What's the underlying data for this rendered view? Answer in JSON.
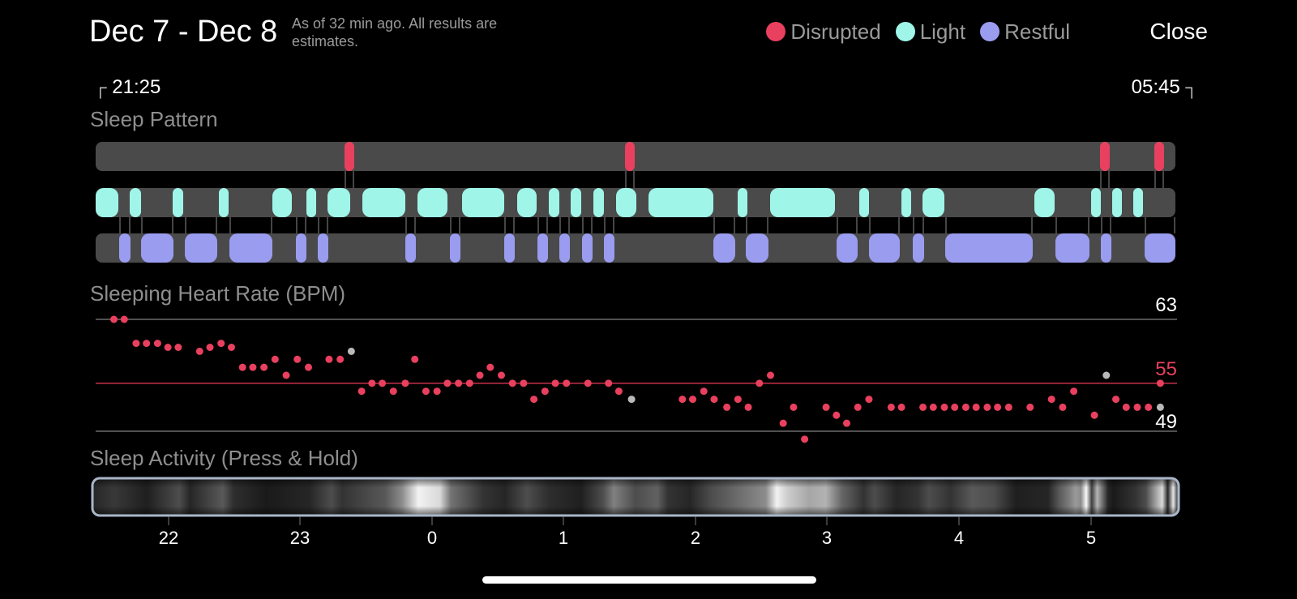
{
  "header": {
    "title": "Dec 7 - Dec 8",
    "subtitle": "As of 32 min ago. All results are estimates.",
    "close_label": "Close"
  },
  "legend": [
    {
      "label": "Disrupted",
      "color": "#e8405e"
    },
    {
      "label": "Light",
      "color": "#9ff5e8"
    },
    {
      "label": "Restful",
      "color": "#9a9cf0"
    }
  ],
  "range": {
    "start": "21:25",
    "end": "05:45"
  },
  "sections": {
    "sleep_pattern": "Sleep Pattern",
    "heart_rate": "Sleeping Heart Rate (BPM)",
    "activity": "Sleep Activity (Press & Hold)"
  },
  "heart_rate": {
    "max": "63",
    "avg": "55",
    "min": "49"
  },
  "time_axis": [
    "22",
    "23",
    "0",
    "1",
    "2",
    "3",
    "4",
    "5"
  ],
  "colors": {
    "disrupted": "#e8405e",
    "light": "#9ff5e8",
    "restful": "#9a9cf0",
    "track": "#4a4a4a",
    "background": "#000000"
  }
}
